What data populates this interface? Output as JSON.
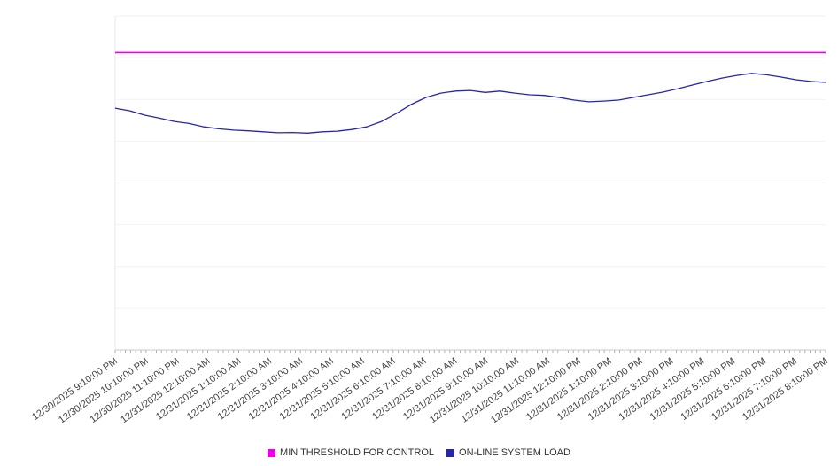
{
  "chart_data": {
    "type": "line",
    "title": "",
    "xlabel": "",
    "ylabel": "",
    "ylim": [
      0,
      100
    ],
    "grid_step": 12.5,
    "grid_on": true,
    "legend_position": "bottom",
    "x_tick_minor_per_hour": 6,
    "categories": [
      "12/30/2025 9:10:00 PM",
      "12/30/2025 10:10:00 PM",
      "12/30/2025 11:10:00 PM",
      "12/31/2025 12:10:00 AM",
      "12/31/2025 1:10:00 AM",
      "12/31/2025 2:10:00 AM",
      "12/31/2025 3:10:00 AM",
      "12/31/2025 4:10:00 AM",
      "12/31/2025 5:10:00 AM",
      "12/31/2025 6:10:00 AM",
      "12/31/2025 7:10:00 AM",
      "12/31/2025 8:10:00 AM",
      "12/31/2025 9:10:00 AM",
      "12/31/2025 10:10:00 AM",
      "12/31/2025 11:10:00 AM",
      "12/31/2025 12:10:00 PM",
      "12/31/2025 1:10:00 PM",
      "12/31/2025 2:10:00 PM",
      "12/31/2025 3:10:00 PM",
      "12/31/2025 4:10:00 PM",
      "12/31/2025 5:10:00 PM",
      "12/31/2025 6:10:00 PM",
      "12/31/2025 7:10:00 PM",
      "12/31/2025 8:10:00 PM"
    ],
    "series": [
      {
        "name": "MIN THRESHOLD FOR CONTROL",
        "type": "threshold-line",
        "value": 89,
        "color": "#ee00ee"
      },
      {
        "name": "ON-LINE SYSTEM LOAD",
        "type": "line",
        "color": "#2626ad",
        "values": [
          72.4,
          71.6,
          70.3,
          69.4,
          68.4,
          67.8,
          66.8,
          66.2,
          65.8,
          65.6,
          65.3,
          65.0,
          65.1,
          64.9,
          65.3,
          65.5,
          66.0,
          66.8,
          68.4,
          70.8,
          73.5,
          75.6,
          76.9,
          77.5,
          77.7,
          77.1,
          77.5,
          76.9,
          76.4,
          76.2,
          75.6,
          74.8,
          74.3,
          74.5,
          74.8,
          75.6,
          76.4,
          77.2,
          78.2,
          79.3,
          80.4,
          81.4,
          82.2,
          82.8,
          82.4,
          81.7,
          80.9,
          80.4,
          80.1
        ]
      }
    ]
  },
  "legend": {
    "threshold_label": "MIN THRESHOLD FOR CONTROL",
    "load_label": "ON-LINE SYSTEM LOAD"
  }
}
